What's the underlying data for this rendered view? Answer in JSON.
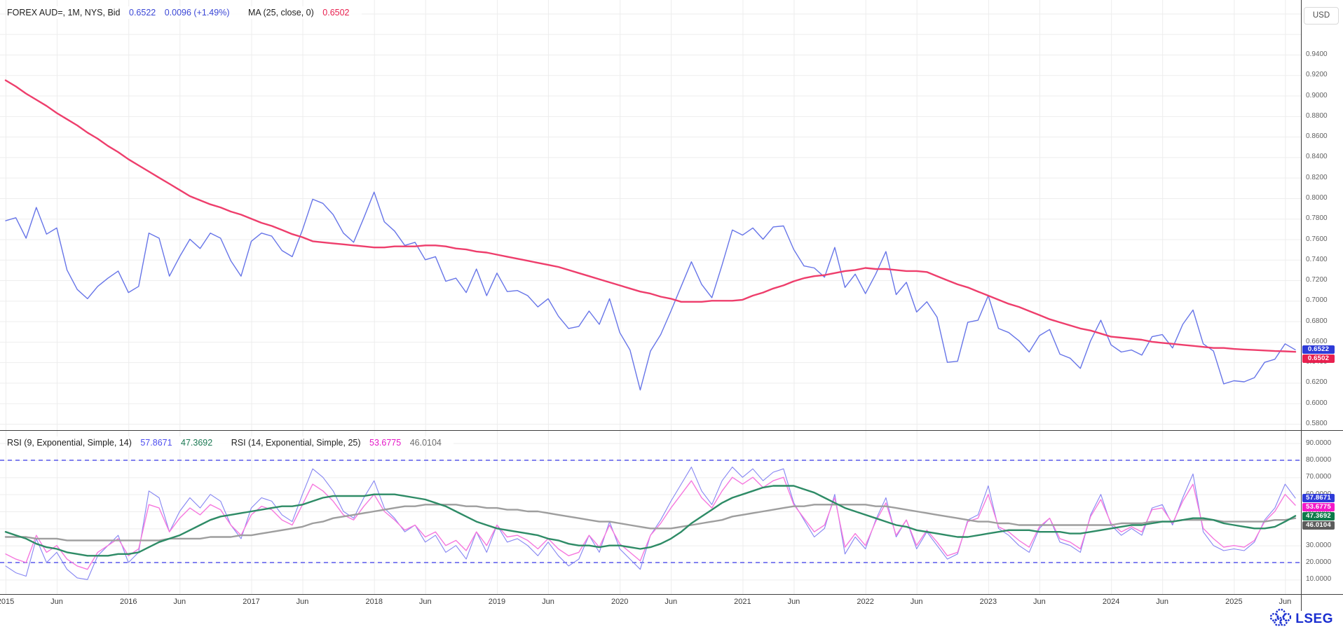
{
  "header": {
    "title": "FOREX AUD=, 1M, NYS, Bid",
    "last": "0.6522",
    "change": "0.0096 (+1.49%)",
    "ma_label": "MA (25, close, 0)",
    "ma_value": "0.6502"
  },
  "rsi_header": {
    "label1": "RSI (9, Exponential, Simple, 14)",
    "value1": "57.8671",
    "value1_ma": "47.3692",
    "label2": "RSI (14, Exponential, Simple, 25)",
    "value2": "53.6775",
    "value2_ma": "46.0104"
  },
  "axis": {
    "currency": "USD",
    "price_ticks": [
      "0.9400",
      "0.9200",
      "0.9000",
      "0.8800",
      "0.8600",
      "0.8400",
      "0.8200",
      "0.8000",
      "0.7800",
      "0.7600",
      "0.7400",
      "0.7200",
      "0.7000",
      "0.6800",
      "0.6600",
      "0.6400",
      "0.6200",
      "0.6000",
      "0.5800"
    ],
    "rsi_ticks": [
      "90.0000",
      "80.0000",
      "70.0000",
      "60.0000",
      "50.0000",
      "40.0000",
      "30.0000",
      "20.0000",
      "10.0000"
    ],
    "time_ticks": [
      {
        "label": "2015",
        "m": 0
      },
      {
        "label": "Jun",
        "m": 5
      },
      {
        "label": "2016",
        "m": 12
      },
      {
        "label": "Jun",
        "m": 17
      },
      {
        "label": "2017",
        "m": 24
      },
      {
        "label": "Jun",
        "m": 29
      },
      {
        "label": "2018",
        "m": 36
      },
      {
        "label": "Jun",
        "m": 41
      },
      {
        "label": "2019",
        "m": 48
      },
      {
        "label": "Jun",
        "m": 53
      },
      {
        "label": "2020",
        "m": 60
      },
      {
        "label": "Jun",
        "m": 65
      },
      {
        "label": "2021",
        "m": 72
      },
      {
        "label": "Jun",
        "m": 77
      },
      {
        "label": "2022",
        "m": 84
      },
      {
        "label": "Jun",
        "m": 89
      },
      {
        "label": "2023",
        "m": 96
      },
      {
        "label": "Jun",
        "m": 101
      },
      {
        "label": "2024",
        "m": 108
      },
      {
        "label": "Jun",
        "m": 113
      },
      {
        "label": "2025",
        "m": 120
      },
      {
        "label": "Jun",
        "m": 125
      }
    ]
  },
  "badges": {
    "price": [
      {
        "text": "0.6522",
        "value": 0.6522,
        "bg": "#2e3bd8"
      },
      {
        "text": "0.6502",
        "value": 0.6502,
        "bg": "#e8204f"
      }
    ],
    "rsi": [
      {
        "text": "57.8671",
        "value": 57.8671,
        "bg": "#2e3bd8"
      },
      {
        "text": "53.6775",
        "value": 53.6775,
        "bg": "#f318c8"
      },
      {
        "text": "47.3692",
        "value": 47.3692,
        "bg": "#0d7a4a"
      },
      {
        "text": "46.0104",
        "value": 46.0104,
        "bg": "#5c5c5c"
      }
    ]
  },
  "colors": {
    "price_line": "#6775e8",
    "ma_line": "#ee3e6c",
    "rsi9_line": "#8585f2",
    "rsi9_ma_line": "#2e8b66",
    "rsi14_line": "#f678de",
    "rsi14_ma_line": "#9e9e9e",
    "band_line": "#5b5bee",
    "grid_line": "#ededed",
    "divider_line": "#3f3f3f",
    "header_value_blue": "#3b47d6",
    "header_value_red": "#e8204f",
    "rsi_value_blue": "#4d4df0",
    "rsi_value_green": "#1d7a54",
    "rsi_value_magenta": "#e518c8",
    "rsi_value_gray": "#6e6e6e",
    "lseg_blue": "#1b2fd0"
  },
  "logo": {
    "text": "LSEG"
  },
  "chart_data": {
    "type": "line",
    "title": "FOREX AUD=, 1M, NYS, Bid — monthly line with MA(25) and dual RSI panel",
    "x_unit": "months from 2015-01 to 2025-07",
    "time_range": [
      "2015-01",
      "2025-07"
    ],
    "price_axis": {
      "min": 0.58,
      "max": 0.94,
      "step": 0.02,
      "unit": "USD"
    },
    "rsi_axis": {
      "min": 10,
      "max": 90,
      "step": 10,
      "overbought": 80,
      "oversold": 20
    },
    "grid": true,
    "series": [
      {
        "name": "AUD= Bid close",
        "panel": "price",
        "color": "#6775e8",
        "last": 0.6522,
        "values": [
          0.778,
          0.781,
          0.761,
          0.791,
          0.765,
          0.771,
          0.73,
          0.711,
          0.702,
          0.714,
          0.722,
          0.729,
          0.708,
          0.714,
          0.766,
          0.761,
          0.724,
          0.743,
          0.76,
          0.751,
          0.766,
          0.761,
          0.739,
          0.724,
          0.758,
          0.766,
          0.763,
          0.749,
          0.743,
          0.769,
          0.799,
          0.795,
          0.784,
          0.766,
          0.757,
          0.781,
          0.806,
          0.777,
          0.768,
          0.754,
          0.757,
          0.74,
          0.743,
          0.719,
          0.722,
          0.708,
          0.731,
          0.705,
          0.727,
          0.709,
          0.71,
          0.705,
          0.694,
          0.702,
          0.685,
          0.673,
          0.675,
          0.69,
          0.677,
          0.702,
          0.669,
          0.652,
          0.613,
          0.651,
          0.667,
          0.69,
          0.714,
          0.738,
          0.716,
          0.703,
          0.735,
          0.769,
          0.764,
          0.771,
          0.76,
          0.772,
          0.773,
          0.75,
          0.734,
          0.732,
          0.723,
          0.752,
          0.713,
          0.726,
          0.707,
          0.726,
          0.748,
          0.706,
          0.718,
          0.689,
          0.699,
          0.684,
          0.64,
          0.641,
          0.679,
          0.681,
          0.705,
          0.673,
          0.669,
          0.661,
          0.65,
          0.666,
          0.672,
          0.648,
          0.644,
          0.634,
          0.661,
          0.681,
          0.657,
          0.65,
          0.652,
          0.647,
          0.665,
          0.667,
          0.654,
          0.677,
          0.691,
          0.658,
          0.651,
          0.619,
          0.622,
          0.621,
          0.625,
          0.64,
          0.643,
          0.658,
          0.6522
        ]
      },
      {
        "name": "MA (25, close, 0)",
        "panel": "price",
        "color": "#ee3e6c",
        "last": 0.6502,
        "values": [
          0.915,
          0.909,
          0.902,
          0.896,
          0.89,
          0.883,
          0.877,
          0.871,
          0.864,
          0.858,
          0.851,
          0.845,
          0.838,
          0.832,
          0.826,
          0.82,
          0.814,
          0.808,
          0.802,
          0.798,
          0.794,
          0.791,
          0.787,
          0.784,
          0.78,
          0.776,
          0.773,
          0.769,
          0.765,
          0.762,
          0.758,
          0.757,
          0.756,
          0.755,
          0.754,
          0.753,
          0.752,
          0.752,
          0.753,
          0.753,
          0.753,
          0.754,
          0.754,
          0.753,
          0.751,
          0.75,
          0.748,
          0.747,
          0.745,
          0.743,
          0.741,
          0.739,
          0.737,
          0.735,
          0.733,
          0.73,
          0.727,
          0.724,
          0.721,
          0.718,
          0.715,
          0.712,
          0.709,
          0.707,
          0.704,
          0.702,
          0.699,
          0.699,
          0.699,
          0.7,
          0.7,
          0.7,
          0.701,
          0.705,
          0.708,
          0.712,
          0.715,
          0.719,
          0.722,
          0.724,
          0.725,
          0.727,
          0.729,
          0.73,
          0.732,
          0.731,
          0.731,
          0.73,
          0.729,
          0.729,
          0.728,
          0.724,
          0.72,
          0.716,
          0.713,
          0.709,
          0.705,
          0.701,
          0.697,
          0.694,
          0.69,
          0.686,
          0.682,
          0.679,
          0.676,
          0.673,
          0.671,
          0.668,
          0.665,
          0.664,
          0.663,
          0.662,
          0.66,
          0.659,
          0.658,
          0.657,
          0.656,
          0.655,
          0.654,
          0.654,
          0.653,
          0.6525,
          0.652,
          0.6515,
          0.651,
          0.6507,
          0.6502
        ]
      },
      {
        "name": "RSI (9, Exponential)",
        "panel": "rsi",
        "color": "#8585f2",
        "last": 57.8671,
        "values": [
          18,
          14,
          12,
          34,
          20,
          26,
          16,
          11,
          10,
          24,
          30,
          36,
          20,
          26,
          62,
          58,
          38,
          50,
          58,
          52,
          60,
          56,
          42,
          34,
          52,
          58,
          56,
          48,
          44,
          60,
          75,
          70,
          62,
          50,
          46,
          58,
          68,
          52,
          46,
          38,
          42,
          32,
          36,
          26,
          30,
          22,
          38,
          26,
          42,
          32,
          34,
          30,
          24,
          32,
          24,
          18,
          22,
          36,
          26,
          44,
          28,
          22,
          16,
          36,
          45,
          56,
          66,
          76,
          62,
          54,
          68,
          76,
          70,
          75,
          68,
          73,
          75,
          55,
          45,
          35,
          40,
          60,
          25,
          35,
          28,
          45,
          58,
          35,
          45,
          28,
          38,
          30,
          22,
          25,
          45,
          48,
          65,
          40,
          36,
          30,
          26,
          40,
          46,
          32,
          30,
          26,
          48,
          60,
          42,
          36,
          40,
          36,
          52,
          54,
          42,
          58,
          72,
          38,
          30,
          27,
          28,
          27,
          32,
          45,
          52,
          66,
          57.8671
        ]
      },
      {
        "name": "SMA (14) of RSI 9",
        "panel": "rsi",
        "color": "#2e8b66",
        "last": 47.3692,
        "values": [
          38,
          36,
          34,
          31,
          29,
          28,
          26,
          25,
          24,
          24,
          24,
          25,
          25,
          26,
          29,
          32,
          34,
          36,
          39,
          42,
          45,
          47,
          48,
          49,
          50,
          51,
          52,
          53,
          53,
          54,
          56,
          58,
          59,
          59,
          59,
          59,
          60,
          60,
          60,
          59,
          58,
          57,
          55,
          53,
          50,
          47,
          44,
          42,
          40,
          39,
          38,
          37,
          36,
          34,
          33,
          31,
          30,
          30,
          29,
          30,
          30,
          29,
          28,
          29,
          31,
          34,
          38,
          43,
          47,
          51,
          55,
          58,
          60,
          62,
          64,
          65,
          65,
          65,
          63,
          61,
          58,
          55,
          52,
          50,
          48,
          46,
          44,
          42,
          41,
          39,
          38,
          37,
          36,
          35,
          35,
          36,
          37,
          38,
          39,
          39,
          39,
          38,
          38,
          38,
          37,
          37,
          38,
          39,
          40,
          41,
          42,
          42,
          43,
          44,
          44,
          45,
          46,
          46,
          45,
          43,
          42,
          41,
          40,
          40,
          41,
          44,
          47.3692
        ]
      },
      {
        "name": "RSI (14, Exponential)",
        "panel": "rsi",
        "color": "#f678de",
        "last": 53.6775,
        "values": [
          25,
          22,
          20,
          36,
          26,
          30,
          22,
          18,
          16,
          26,
          30,
          34,
          24,
          28,
          54,
          52,
          38,
          46,
          52,
          48,
          54,
          51,
          42,
          36,
          48,
          53,
          51,
          45,
          42,
          54,
          66,
          62,
          56,
          48,
          45,
          53,
          60,
          50,
          45,
          39,
          42,
          35,
          38,
          30,
          33,
          27,
          38,
          30,
          42,
          35,
          36,
          33,
          28,
          34,
          28,
          24,
          26,
          36,
          29,
          42,
          31,
          26,
          21,
          36,
          43,
          52,
          60,
          68,
          58,
          52,
          62,
          70,
          66,
          70,
          64,
          68,
          70,
          54,
          46,
          38,
          42,
          58,
          29,
          37,
          30,
          44,
          55,
          36,
          45,
          30,
          39,
          32,
          24,
          26,
          44,
          46,
          60,
          41,
          38,
          33,
          29,
          41,
          46,
          34,
          32,
          28,
          47,
          57,
          43,
          38,
          41,
          38,
          51,
          52,
          43,
          56,
          66,
          40,
          34,
          29,
          30,
          29,
          33,
          44,
          50,
          60,
          53.6775
        ]
      },
      {
        "name": "SMA (25) of RSI 14",
        "panel": "rsi",
        "color": "#9e9e9e",
        "last": 46.0104,
        "values": [
          35,
          35,
          35,
          34,
          34,
          34,
          33,
          33,
          33,
          33,
          33,
          33,
          33,
          33,
          33,
          33,
          34,
          34,
          34,
          34,
          35,
          35,
          35,
          36,
          36,
          37,
          38,
          39,
          40,
          41,
          43,
          44,
          46,
          47,
          48,
          49,
          50,
          51,
          52,
          53,
          53,
          54,
          54,
          54,
          54,
          53,
          53,
          52,
          52,
          51,
          51,
          50,
          50,
          49,
          48,
          47,
          46,
          45,
          44,
          44,
          43,
          42,
          41,
          40,
          40,
          40,
          41,
          42,
          43,
          44,
          45,
          47,
          48,
          49,
          50,
          51,
          52,
          53,
          53,
          54,
          54,
          54,
          54,
          54,
          54,
          53,
          53,
          52,
          51,
          50,
          49,
          48,
          47,
          46,
          45,
          44,
          44,
          43,
          43,
          42,
          42,
          42,
          42,
          42,
          42,
          42,
          42,
          42,
          42,
          43,
          43,
          43,
          44,
          44,
          44,
          45,
          45,
          45,
          45,
          44,
          44,
          44,
          44,
          44,
          45,
          45,
          46.0104
        ]
      }
    ]
  }
}
